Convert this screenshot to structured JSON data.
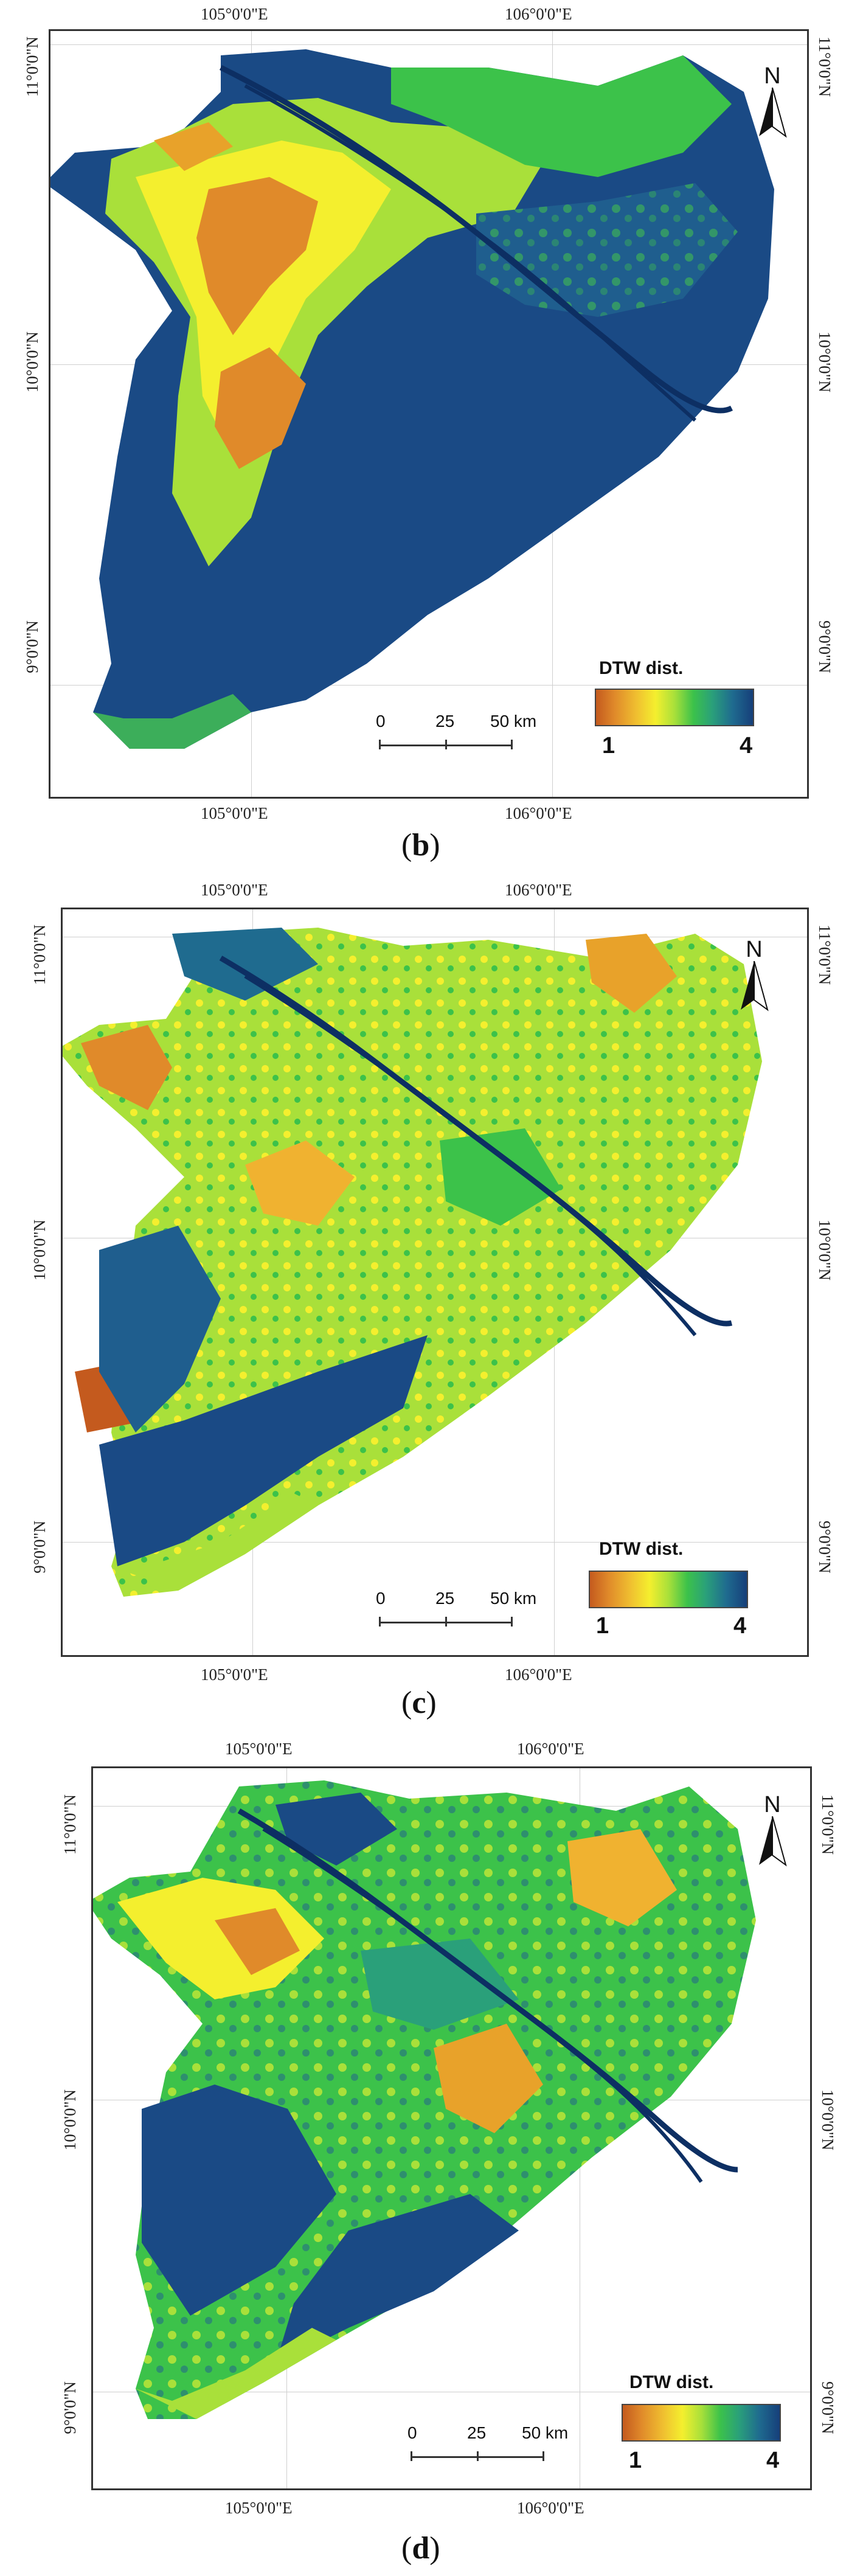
{
  "panels": [
    {
      "id": "b",
      "caption_open": "(",
      "caption_letter": "b",
      "caption_close": ")",
      "lon_labels": [
        "105°0'0\"E",
        "106°0'0\"E"
      ],
      "lat_labels": [
        "11°0'0\"N",
        "10°0'0\"N",
        "9°0'0\"N"
      ],
      "north_label": "N",
      "legend": {
        "title": "DTW dist.",
        "min": "1",
        "max": "4"
      },
      "scale": {
        "labels": [
          "0",
          "25",
          "50 km"
        ]
      }
    },
    {
      "id": "c",
      "caption_open": "(",
      "caption_letter": "c",
      "caption_close": ")",
      "lon_labels": [
        "105°0'0\"E",
        "106°0'0\"E"
      ],
      "lat_labels": [
        "11°0'0\"N",
        "10°0'0\"N",
        "9°0'0\"N"
      ],
      "north_label": "N",
      "legend": {
        "title": "DTW dist.",
        "min": "1",
        "max": "4"
      },
      "scale": {
        "labels": [
          "0",
          "25",
          "50 km"
        ]
      }
    },
    {
      "id": "d",
      "caption_open": "(",
      "caption_letter": "d",
      "caption_close": ")",
      "lon_labels": [
        "105°0'0\"E",
        "106°0'0\"E"
      ],
      "lat_labels": [
        "11°0'0\"N",
        "10°0'0\"N",
        "9°0'0\"N"
      ],
      "north_label": "N",
      "legend": {
        "title": "DTW dist.",
        "min": "1",
        "max": "4"
      },
      "scale": {
        "labels": [
          "0",
          "25",
          "50 km"
        ]
      }
    }
  ],
  "colors": {
    "low": "#c45a1e",
    "mid_low": "#f0c030",
    "mid": "#a9e03a",
    "mid_high": "#3cc24a",
    "high": "#163f7a",
    "deep": "#1a4a85"
  }
}
